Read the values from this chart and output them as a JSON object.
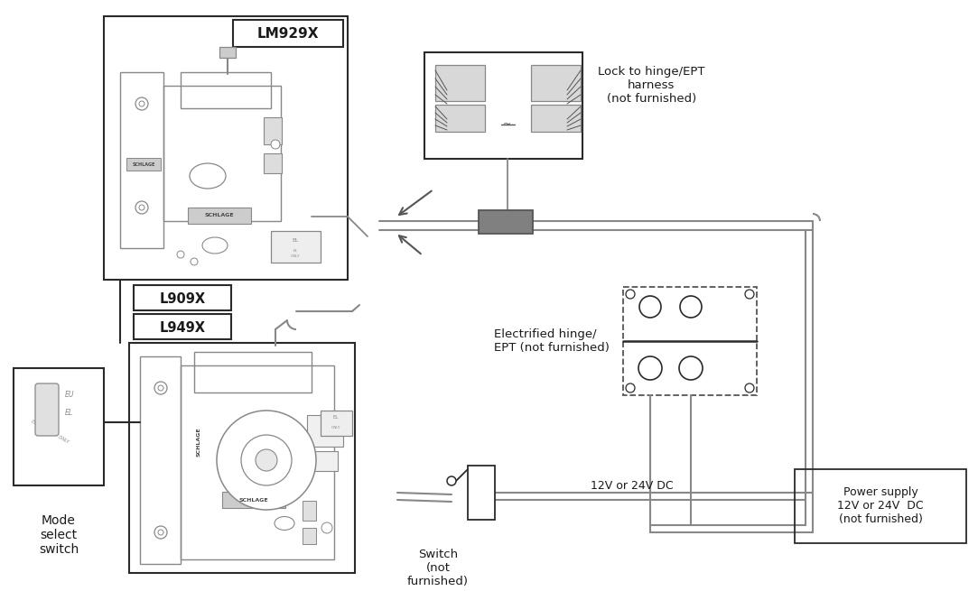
{
  "bg_color": "#ffffff",
  "lc": "#2a2a2a",
  "dg": "#555555",
  "mg": "#888888",
  "lg": "#aaaaaa",
  "connector_fill": "#808080",
  "label_lm929x": "LM929X",
  "label_l909x": "L909X",
  "label_l949x": "L949X",
  "label_lock_hinge": "Lock to hinge/EPT\nharness\n(not furnished)",
  "label_elec_hinge": "Electrified hinge/\nEPT (not furnished)",
  "label_switch": "Switch\n(not\nfurnished)",
  "label_power": "Power supply\n12V or 24V  DC\n(not furnished)",
  "label_12v": "12V or 24V DC",
  "label_mode": "Mode\nselect\nswitch",
  "text_color": "#1a1a1a"
}
